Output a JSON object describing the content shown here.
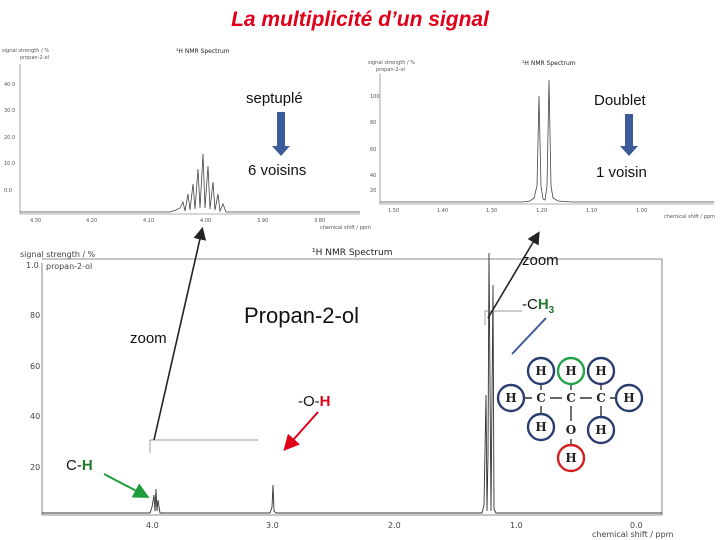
{
  "title": "La multiplicité d’un signal",
  "spectrum_small_left": {
    "header": "¹H NMR Spectrum",
    "ylabel": "signal strength / %",
    "sample": "propan-2-ol",
    "yticks": [
      "40.0",
      "30.0",
      "20.0",
      "10.0",
      "0.0"
    ],
    "xticks": [
      "4.30",
      "4.20",
      "4.10",
      "4.00",
      "3.90",
      "3.80"
    ],
    "xlabel": "chemical shift / ppm"
  },
  "spectrum_small_right": {
    "header": "¹H NMR Spectrum",
    "ylabel": "signal strength / %",
    "sample": "propan-2-ol",
    "yticks": [
      "100",
      "80",
      "60",
      "40",
      "20"
    ],
    "xticks": [
      "1.50",
      "1.40",
      "1.30",
      "1.20",
      "1.10",
      "1.00"
    ],
    "xlabel": "chemical shift / ppm"
  },
  "spectrum_main": {
    "header": "¹H NMR Spectrum",
    "ylabel": "signal strength / %",
    "sample": "propan-2-ol",
    "yticks": [
      "1.0",
      "80",
      "60",
      "40",
      "20"
    ],
    "xticks": [
      "4.0",
      "3.0",
      "2.0",
      "1.0",
      "0.0"
    ],
    "xlabel": "chemical shift / ppm"
  },
  "annotations": {
    "septuple": "septuplé",
    "six_neighbors": "6 voisins",
    "doublet": "Doublet",
    "one_neighbor": "1 voisin",
    "zoom_left": "zoom",
    "zoom_right": "zoom",
    "molecule_name": "Propan-2-ol",
    "oh_prefix": "-O-",
    "oh_h": "H",
    "ch_prefix": "C-",
    "ch_h": "H",
    "ch3_prefix": "-C",
    "ch3_h": "H",
    "ch3_sub": "3"
  },
  "molecule": {
    "atoms": [
      "H",
      "H",
      "H",
      "H",
      "C",
      "C",
      "C",
      "H",
      "H",
      "O",
      "H",
      "H"
    ]
  },
  "colors": {
    "title": "#e0001a",
    "hydrogen_label": "#1f7a2e",
    "oh_label": "#e0001a",
    "blue_arrow": "#3b5b9a",
    "green_ring": "#22a34a",
    "red_ring": "#d42020",
    "navy_ring": "#2c3e70"
  }
}
